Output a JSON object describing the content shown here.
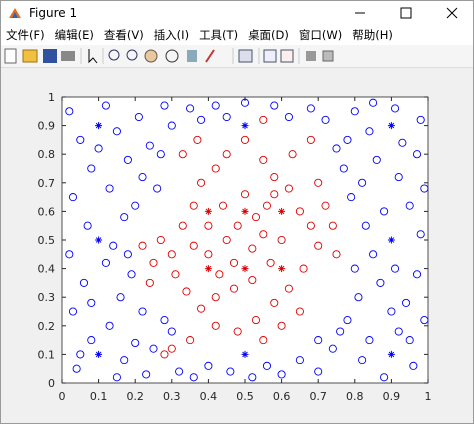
{
  "window": {
    "title": "Figure 1",
    "menus": [
      "文件(F)",
      "编辑(E)",
      "查看(V)",
      "插入(I)",
      "工具(T)",
      "桌面(D)",
      "窗口(W)",
      "帮助(H)"
    ]
  },
  "chart_data": {
    "type": "scatter",
    "xlim": [
      0,
      1
    ],
    "ylim": [
      0,
      1
    ],
    "xticks": [
      0,
      0.1,
      0.2,
      0.3,
      0.4,
      0.5,
      0.6,
      0.7,
      0.8,
      0.9,
      1
    ],
    "yticks": [
      0,
      0.1,
      0.2,
      0.3,
      0.4,
      0.5,
      0.6,
      0.7,
      0.8,
      0.9,
      1
    ],
    "series": [
      {
        "color": "#0000ff",
        "marker": "o",
        "x": [
          0.02,
          0.05,
          0.08,
          0.03,
          0.07,
          0.02,
          0.06,
          0.03,
          0.08,
          0.04,
          0.12,
          0.15,
          0.18,
          0.13,
          0.17,
          0.12,
          0.16,
          0.13,
          0.17,
          0.21,
          0.24,
          0.22,
          0.2,
          0.19,
          0.22,
          0.2,
          0.23,
          0.28,
          0.3,
          0.27,
          0.26,
          0.28,
          0.32,
          0.35,
          0.38,
          0.36,
          0.4,
          0.42,
          0.45,
          0.46,
          0.5,
          0.52,
          0.56,
          0.58,
          0.62,
          0.6,
          0.65,
          0.68,
          0.72,
          0.7,
          0.74,
          0.76,
          0.78,
          0.8,
          0.77,
          0.79,
          0.81,
          0.78,
          0.82,
          0.84,
          0.86,
          0.83,
          0.85,
          0.87,
          0.84,
          0.88,
          0.91,
          0.93,
          0.92,
          0.95,
          0.91,
          0.94,
          0.92,
          0.96,
          0.98,
          0.97,
          0.99,
          0.98,
          0.97,
          0.99,
          0.1,
          0.14,
          0.08,
          0.25,
          0.75,
          0.8,
          0.88,
          0.9,
          0.7,
          0.3,
          0.18,
          0.82,
          0.05,
          0.95,
          0.15,
          0.85
        ],
        "values": [
          0.95,
          0.85,
          0.75,
          0.65,
          0.55,
          0.45,
          0.35,
          0.25,
          0.15,
          0.05,
          0.97,
          0.88,
          0.78,
          0.68,
          0.58,
          0.42,
          0.3,
          0.2,
          0.08,
          0.93,
          0.83,
          0.72,
          0.62,
          0.38,
          0.25,
          0.14,
          0.03,
          0.97,
          0.9,
          0.8,
          0.68,
          0.22,
          0.04,
          0.96,
          0.92,
          0.02,
          0.06,
          0.97,
          0.93,
          0.04,
          0.98,
          0.02,
          0.06,
          0.97,
          0.93,
          0.03,
          0.08,
          0.96,
          0.92,
          0.04,
          0.12,
          0.18,
          0.85,
          0.95,
          0.75,
          0.65,
          0.3,
          0.22,
          0.08,
          0.88,
          0.78,
          0.55,
          0.45,
          0.35,
          0.15,
          0.02,
          0.96,
          0.84,
          0.72,
          0.62,
          0.4,
          0.28,
          0.18,
          0.06,
          0.92,
          0.8,
          0.68,
          0.52,
          0.38,
          0.22,
          0.82,
          0.48,
          0.28,
          0.12,
          0.82,
          0.4,
          0.6,
          0.25,
          0.15,
          0.18,
          0.45,
          0.7,
          0.1,
          0.15,
          0.02,
          0.98
        ]
      },
      {
        "color": "#e00000",
        "marker": "o",
        "x": [
          0.3,
          0.33,
          0.36,
          0.38,
          0.42,
          0.45,
          0.5,
          0.55,
          0.58,
          0.62,
          0.65,
          0.68,
          0.7,
          0.66,
          0.62,
          0.58,
          0.53,
          0.48,
          0.42,
          0.38,
          0.34,
          0.31,
          0.28,
          0.3,
          0.45,
          0.48,
          0.52,
          0.55,
          0.4,
          0.43,
          0.47,
          0.52,
          0.57,
          0.6,
          0.44,
          0.5,
          0.56,
          0.36,
          0.63,
          0.7,
          0.72,
          0.74,
          0.27,
          0.25,
          0.24,
          0.35,
          0.55,
          0.6,
          0.65,
          0.33,
          0.37,
          0.55,
          0.68,
          0.75,
          0.22,
          0.4,
          0.47,
          0.53,
          0.58,
          0.42
        ],
        "values": [
          0.45,
          0.55,
          0.62,
          0.7,
          0.75,
          0.8,
          0.85,
          0.78,
          0.72,
          0.68,
          0.6,
          0.55,
          0.48,
          0.4,
          0.33,
          0.28,
          0.22,
          0.18,
          0.2,
          0.26,
          0.32,
          0.38,
          0.1,
          0.12,
          0.5,
          0.55,
          0.47,
          0.52,
          0.45,
          0.38,
          0.33,
          0.36,
          0.42,
          0.5,
          0.62,
          0.66,
          0.62,
          0.48,
          0.8,
          0.7,
          0.62,
          0.55,
          0.5,
          0.42,
          0.35,
          0.15,
          0.15,
          0.2,
          0.25,
          0.8,
          0.85,
          0.92,
          0.85,
          0.45,
          0.48,
          0.55,
          0.42,
          0.58,
          0.66,
          0.3
        ]
      },
      {
        "color": "#0000ff",
        "marker": "*",
        "x": [
          0.1,
          0.5,
          0.9,
          0.1,
          0.9,
          0.1,
          0.5,
          0.9
        ],
        "values": [
          0.9,
          0.9,
          0.9,
          0.5,
          0.5,
          0.1,
          0.1,
          0.1
        ]
      },
      {
        "color": "#e00000",
        "marker": "*",
        "x": [
          0.4,
          0.5,
          0.6,
          0.4,
          0.5,
          0.6
        ],
        "values": [
          0.6,
          0.6,
          0.6,
          0.4,
          0.4,
          0.4
        ]
      }
    ]
  }
}
